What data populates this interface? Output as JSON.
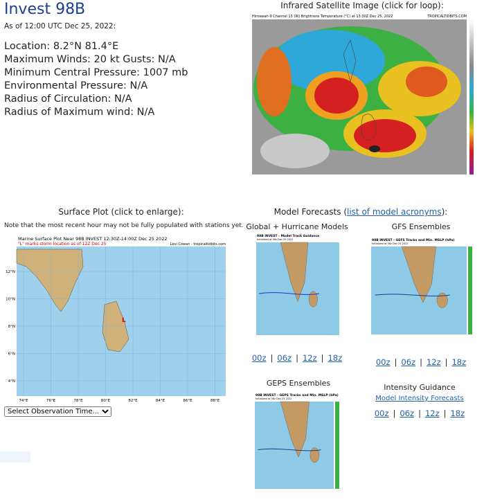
{
  "header": {
    "title": "Invest 98B",
    "as_of": "As of 12:00 UTC Dec 25, 2022:"
  },
  "info": [
    "Location: 8.2°N 81.4°E",
    "Maximum Winds: 20 kt  Gusts: N/A",
    "Minimum Central Pressure: 1007 mb",
    "Environmental Pressure: N/A",
    "Radius of Circulation: N/A",
    "Radius of Maximum wind: N/A"
  ],
  "satellite": {
    "heading": "Infrared Satellite Image (click for loop):",
    "caption": "Himawari-9 Channel 13 (IR) Brightness Temperature (°C) at 13:30Z Dec 25, 2022",
    "credit": "TROPICALTIDBITS.COM"
  },
  "surface": {
    "heading": "Surface Plot (click to enlarge):",
    "note": "Note that the most recent hour may not be fully populated with stations yet.",
    "plot_title": "Marine Surface Plot Near 98B INVEST 12:30Z-14:00Z Dec 25 2022",
    "plot_subtitle": "\"L\" marks storm location as of 12Z Dec 25",
    "credit": "Levi Cowan - tropicaltidbits.com",
    "x_labels": [
      "74°E",
      "76°E",
      "78°E",
      "80°E",
      "82°E",
      "84°E",
      "86°E",
      "88°E"
    ],
    "y_labels": [
      "12°N",
      "10°N",
      "8°N",
      "6°N",
      "4°N"
    ],
    "select": "Select Observation Time..."
  },
  "models": {
    "heading_start": "Model Forecasts (",
    "heading_link": "list of model acronyms",
    "heading_end": "):",
    "separator": "|",
    "panels": [
      {
        "title": "Global + Hurricane Models",
        "image_title": "98B INVEST - Model Track Guidance",
        "image_sub": "Initialized at 06z Dec 25 2022",
        "links": [
          "00z",
          "06z",
          "12z",
          "18z"
        ]
      },
      {
        "title": "GFS Ensembles",
        "image_title": "98B INVEST - GEFS Tracks and Min. MSLP (hPa)",
        "image_sub": "Initialized at 06z Dec 25 2022",
        "links": [
          "00z",
          "06z",
          "12z",
          "18z"
        ]
      },
      {
        "title": "GEPS Ensembles",
        "image_title": "98B INVEST - GEPS Tracks and Min. MSLP (hPa)",
        "image_sub": "Initialized at 06z Dec 25 2022"
      },
      {
        "title": "Intensity Guidance",
        "link": "Model Intensity Forecasts",
        "links": [
          "00z",
          "06z",
          "12z",
          "18z"
        ]
      }
    ]
  }
}
